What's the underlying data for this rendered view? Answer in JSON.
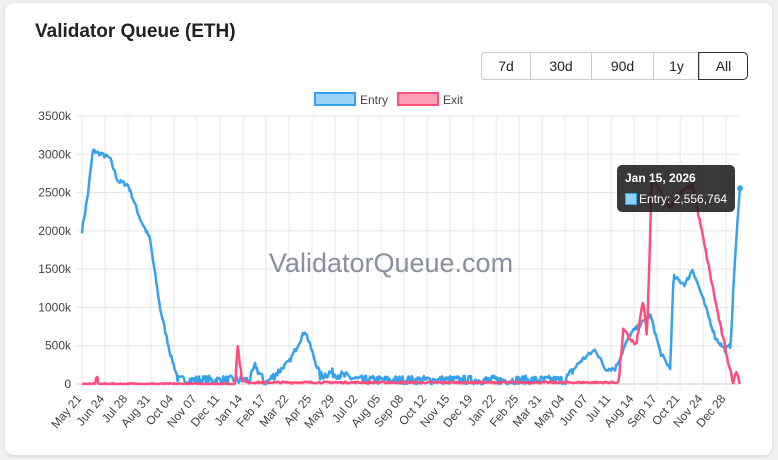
{
  "header": {
    "title": "Validator Queue (ETH)"
  },
  "range_buttons": [
    {
      "label": "7d"
    },
    {
      "label": "30d"
    },
    {
      "label": "90d"
    },
    {
      "label": "1y"
    },
    {
      "label": "All",
      "active": true
    }
  ],
  "watermark": "ValidatorQueue.com",
  "tooltip": {
    "title": "Jan 15, 2026",
    "series": "Entry",
    "value_label": "Entry: 2,556,764"
  },
  "chart_data": {
    "type": "line",
    "title": "",
    "xlabel": "",
    "ylabel": "",
    "ylim": [
      0,
      3500000
    ],
    "y_ticks": [
      "0",
      "500k",
      "1000k",
      "1500k",
      "2000k",
      "2500k",
      "3000k",
      "3500k"
    ],
    "x_range": [
      "2023-05-21",
      "2026-01-15"
    ],
    "x_ticks": [
      "May 21",
      "Jun 24",
      "Jul 28",
      "Aug 31",
      "Oct 04",
      "Nov 07",
      "Dec 11",
      "Jan 14",
      "Feb 17",
      "Mar 22",
      "Apr 25",
      "May 29",
      "Jul 02",
      "Aug 05",
      "Sep 08",
      "Oct 12",
      "Nov 15",
      "Dec 19",
      "Jan 22",
      "Feb 25",
      "Mar 31",
      "May 04",
      "Jun 07",
      "Jul 11",
      "Aug 14",
      "Sep 17",
      "Oct 21",
      "Nov 24",
      "Dec 28"
    ],
    "grid": true,
    "legend": "top",
    "series": [
      {
        "name": "Entry",
        "color": "#36a2eb",
        "points": [
          [
            "2023-05-21",
            2000000
          ],
          [
            "2023-05-30",
            2500000
          ],
          [
            "2023-06-06",
            3050000
          ],
          [
            "2023-07-01",
            2950000
          ],
          [
            "2023-07-13",
            2650000
          ],
          [
            "2023-07-28",
            2600000
          ],
          [
            "2023-08-15",
            2150000
          ],
          [
            "2023-08-29",
            1900000
          ],
          [
            "2023-09-13",
            1000000
          ],
          [
            "2023-09-28",
            400000
          ],
          [
            "2023-10-10",
            50000
          ],
          [
            "2024-01-24",
            50000
          ],
          [
            "2024-01-31",
            250000
          ],
          [
            "2024-02-15",
            0
          ],
          [
            "2024-03-22",
            300000
          ],
          [
            "2024-04-14",
            700000
          ],
          [
            "2024-05-06",
            100000
          ],
          [
            "2024-05-21",
            150000
          ],
          [
            "2024-06-12",
            100000
          ],
          [
            "2024-07-04",
            50000
          ],
          [
            "2025-05-02",
            50000
          ],
          [
            "2025-05-25",
            300000
          ],
          [
            "2025-06-16",
            450000
          ],
          [
            "2025-06-30",
            200000
          ],
          [
            "2025-07-15",
            200000
          ],
          [
            "2025-08-06",
            650000
          ],
          [
            "2025-09-05",
            900000
          ],
          [
            "2025-09-20",
            400000
          ],
          [
            "2025-10-04",
            200000
          ],
          [
            "2025-10-09",
            1400000
          ],
          [
            "2025-10-26",
            1300000
          ],
          [
            "2025-11-06",
            1500000
          ],
          [
            "2025-11-18",
            1200000
          ],
          [
            "2025-12-10",
            600000
          ],
          [
            "2025-12-24",
            450000
          ],
          [
            "2026-01-01",
            500000
          ],
          [
            "2026-01-08",
            1700000
          ],
          [
            "2026-01-15",
            2556764
          ]
        ]
      },
      {
        "name": "Exit",
        "color": "#ff4d7d",
        "points": [
          [
            "2023-05-21",
            0
          ],
          [
            "2023-06-10",
            0
          ],
          [
            "2023-06-12",
            150000
          ],
          [
            "2023-06-14",
            0
          ],
          [
            "2024-01-02",
            0
          ],
          [
            "2024-01-05",
            520000
          ],
          [
            "2024-01-12",
            50000
          ],
          [
            "2024-01-20",
            20000
          ],
          [
            "2025-07-20",
            20000
          ],
          [
            "2025-07-27",
            700000
          ],
          [
            "2025-08-15",
            500000
          ],
          [
            "2025-08-25",
            1100000
          ],
          [
            "2025-08-31",
            600000
          ],
          [
            "2025-09-07",
            2700000
          ],
          [
            "2025-10-04",
            2300000
          ],
          [
            "2025-10-19",
            2500000
          ],
          [
            "2025-11-06",
            2600000
          ],
          [
            "2025-11-24",
            1800000
          ],
          [
            "2025-12-16",
            800000
          ],
          [
            "2026-01-05",
            0
          ],
          [
            "2026-01-09",
            200000
          ],
          [
            "2026-01-15",
            0
          ]
        ]
      }
    ]
  }
}
